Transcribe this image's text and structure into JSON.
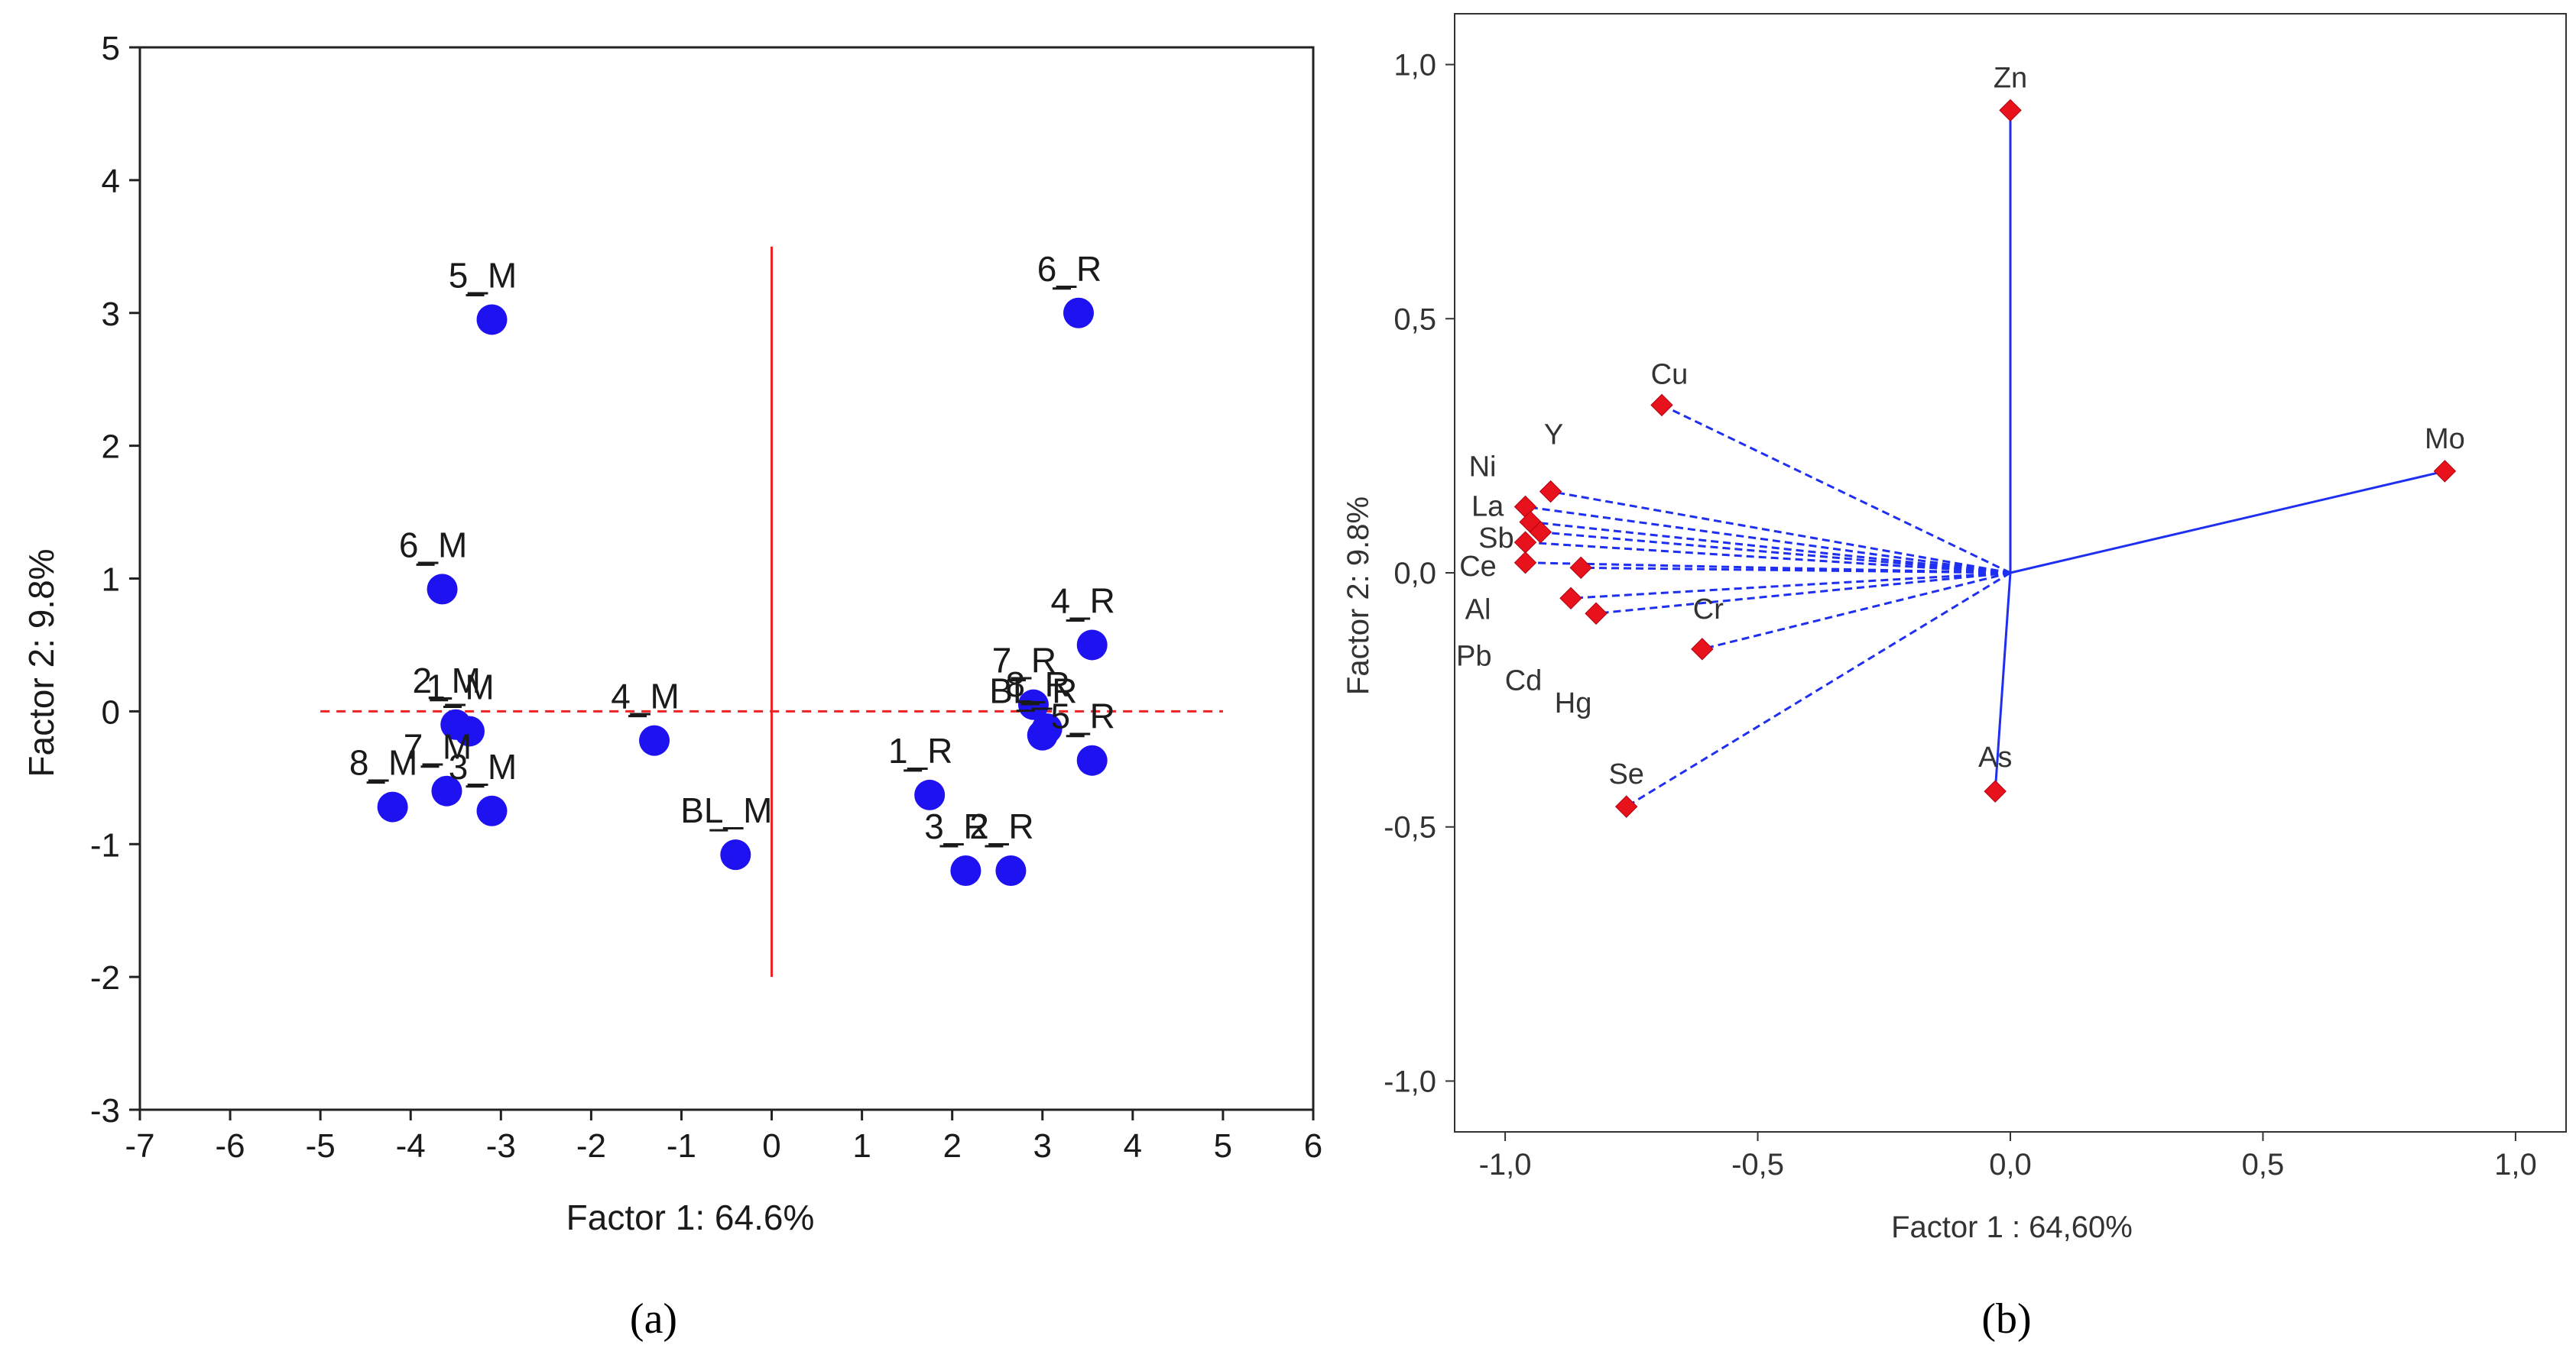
{
  "colors": {
    "point_fill_a": "#1f12f0",
    "reference_line_a": "#ee2222",
    "loading_marker_b": "#e8121c",
    "loading_line_b": "#1f2ff2",
    "frame": "#222222"
  },
  "chart_data": [
    {
      "type": "scatter",
      "panel_label": "(a)",
      "xlabel": "Factor 1: 64.6%",
      "ylabel": "Factor 2:  9.8%",
      "xlim": [
        -7,
        6
      ],
      "ylim": [
        -3,
        5
      ],
      "xticks": [
        -7,
        -6,
        -5,
        -4,
        -3,
        -2,
        -1,
        0,
        1,
        2,
        3,
        4,
        5,
        6
      ],
      "yticks": [
        -3,
        -2,
        -1,
        0,
        1,
        2,
        3,
        4,
        5
      ],
      "grid": false,
      "reference_lines": {
        "horizontal": {
          "y": 0,
          "x_from": -5,
          "x_to": 5,
          "style": "dashed"
        },
        "vertical": {
          "x": 0,
          "y_from": -2,
          "y_to": 3.5
        }
      },
      "points": [
        {
          "label": "5_M",
          "x": -3.1,
          "y": 2.95
        },
        {
          "label": "6_M",
          "x": -3.65,
          "y": 0.92
        },
        {
          "label": "2_M",
          "x": -3.5,
          "y": -0.1
        },
        {
          "label": "1_M",
          "x": -3.35,
          "y": -0.15
        },
        {
          "label": "7_M",
          "x": -3.6,
          "y": -0.6
        },
        {
          "label": "3_M",
          "x": -3.1,
          "y": -0.75
        },
        {
          "label": "8_M",
          "x": -4.2,
          "y": -0.72
        },
        {
          "label": "4_M",
          "x": -1.3,
          "y": -0.22
        },
        {
          "label": "BL_M",
          "x": -0.4,
          "y": -1.08
        },
        {
          "label": "6_R",
          "x": 3.4,
          "y": 3.0
        },
        {
          "label": "4_R",
          "x": 3.55,
          "y": 0.5
        },
        {
          "label": "7_R",
          "x": 2.9,
          "y": 0.05
        },
        {
          "label": "BL_R",
          "x": 3.0,
          "y": -0.18
        },
        {
          "label": "8_R",
          "x": 3.05,
          "y": -0.13
        },
        {
          "label": "5_R",
          "x": 3.55,
          "y": -0.37
        },
        {
          "label": "1_R",
          "x": 1.75,
          "y": -0.63
        },
        {
          "label": "3_R",
          "x": 2.15,
          "y": -1.2
        },
        {
          "label": "2_R",
          "x": 2.65,
          "y": -1.2
        }
      ]
    },
    {
      "type": "scatter",
      "panel_label": "(b)",
      "xlabel": "Factor 1 : 64,60%",
      "ylabel": "Factor 2: 9.8%",
      "xlim": [
        -1.1,
        1.1
      ],
      "ylim": [
        -1.1,
        1.1
      ],
      "xticks": [
        "-1,0",
        "-0,5",
        "0,0",
        "0,5",
        "1,0"
      ],
      "yticks": [
        "-1,0",
        "-0,5",
        "0,0",
        "0,5",
        "1,0"
      ],
      "xtick_values": [
        -1.0,
        -0.5,
        0.0,
        0.5,
        1.0
      ],
      "ytick_values": [
        -1.0,
        -0.5,
        0.0,
        0.5,
        1.0
      ],
      "grid": false,
      "origin": [
        0,
        0
      ],
      "points": [
        {
          "label": "Zn",
          "x": 0.0,
          "y": 0.91
        },
        {
          "label": "Mo",
          "x": 0.86,
          "y": 0.2
        },
        {
          "label": "Cu",
          "x": -0.69,
          "y": 0.33
        },
        {
          "label": "Y",
          "x": -0.91,
          "y": 0.16
        },
        {
          "label": "Ni",
          "x": -0.96,
          "y": 0.13
        },
        {
          "label": "La",
          "x": -0.95,
          "y": 0.1
        },
        {
          "label": "Sb",
          "x": -0.93,
          "y": 0.08
        },
        {
          "label": "Ce",
          "x": -0.96,
          "y": 0.06
        },
        {
          "label": "Al",
          "x": -0.96,
          "y": 0.02
        },
        {
          "label": "Pb",
          "x": -0.85,
          "y": 0.01
        },
        {
          "label": "Cd",
          "x": -0.87,
          "y": -0.05
        },
        {
          "label": "Hg",
          "x": -0.82,
          "y": -0.08
        },
        {
          "label": "Cr",
          "x": -0.61,
          "y": -0.15
        },
        {
          "label": "Se",
          "x": -0.76,
          "y": -0.46
        },
        {
          "label": "As",
          "x": -0.03,
          "y": -0.43
        }
      ]
    }
  ]
}
